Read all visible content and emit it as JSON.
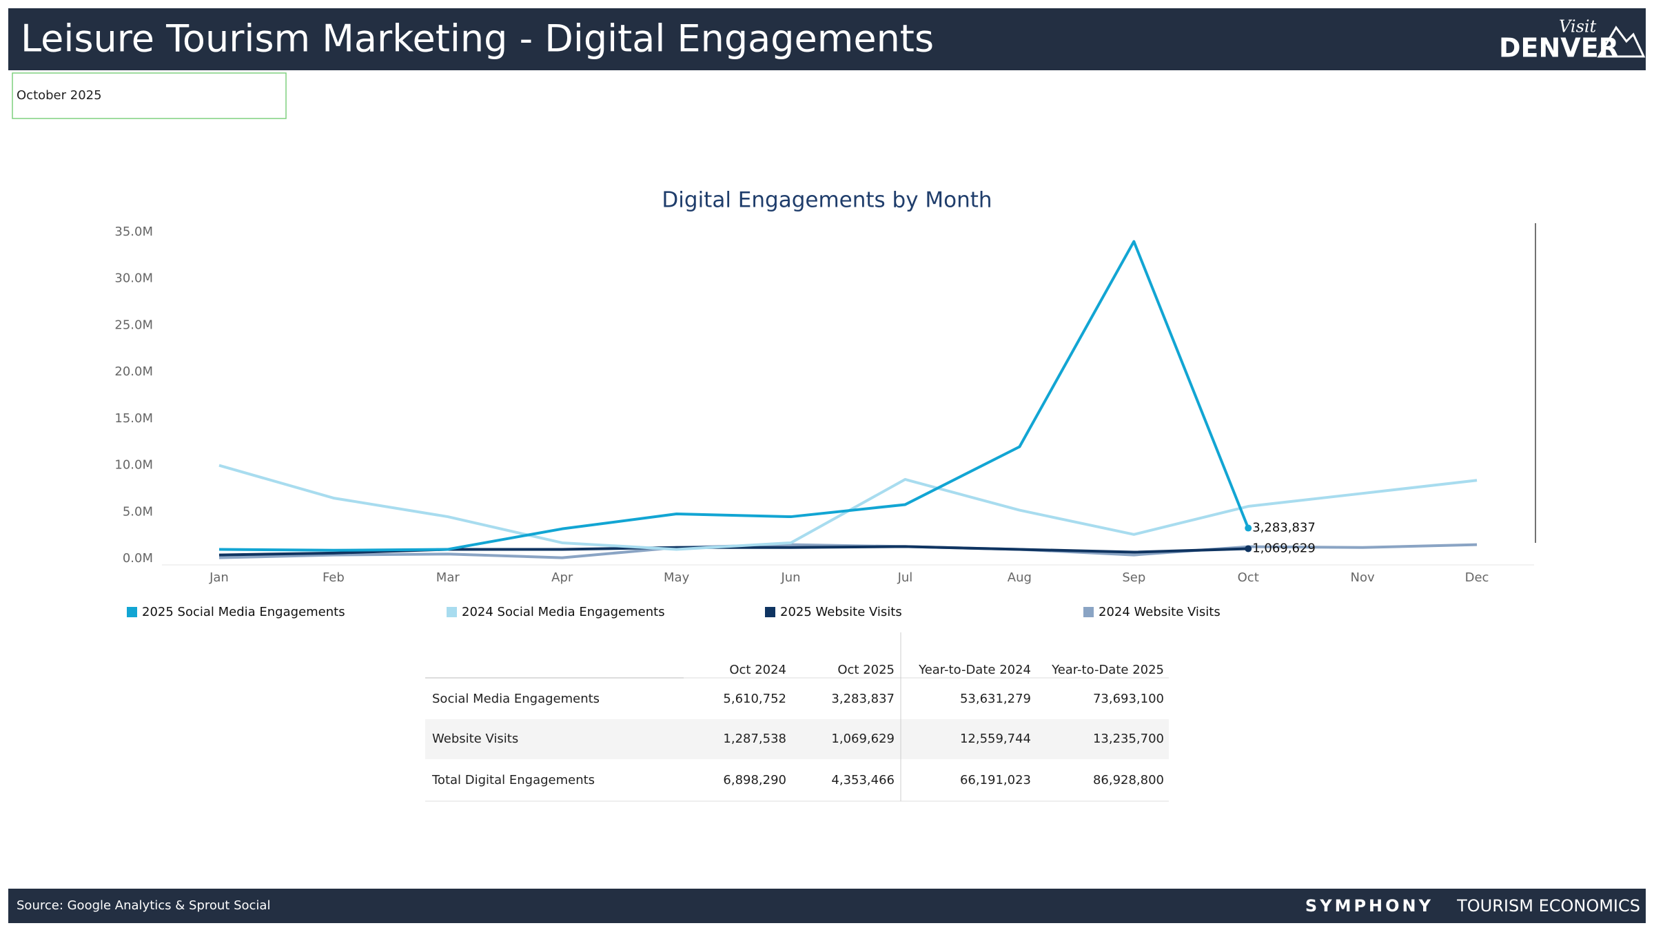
{
  "header": {
    "title": "Leisure Tourism Marketing - Digital Engagements",
    "logo": {
      "small": "Visit",
      "large": "DENVER"
    }
  },
  "filter": {
    "label": "October 2025"
  },
  "chart_data": {
    "type": "line",
    "title": "Digital Engagements by Month",
    "categories": [
      "Jan",
      "Feb",
      "Mar",
      "Apr",
      "May",
      "Jun",
      "Jul",
      "Aug",
      "Sep",
      "Oct",
      "Nov",
      "Dec"
    ],
    "series": [
      {
        "name": "2025 Social Media Engagements",
        "color": "#12a5d3",
        "width": 4,
        "values": [
          1000000,
          900000,
          1000000,
          3200000,
          4800000,
          4500000,
          5800000,
          12000000,
          34000000,
          3283837,
          null,
          null
        ],
        "value_labels": [
          null,
          null,
          null,
          null,
          null,
          null,
          null,
          null,
          null,
          "3,283,837",
          null,
          null
        ]
      },
      {
        "name": "2024 Social Media Engagements",
        "color": "#a8dcef",
        "width": 4,
        "values": [
          10000000,
          6500000,
          4500000,
          1700000,
          1000000,
          1700000,
          8500000,
          5200000,
          2600000,
          5610752,
          7000000,
          8400000
        ]
      },
      {
        "name": "2025 Website Visits",
        "color": "#0f3461",
        "width": 4,
        "values": [
          400000,
          600000,
          1000000,
          1000000,
          1200000,
          1200000,
          1300000,
          1000000,
          700000,
          1069629,
          null,
          null
        ],
        "value_labels": [
          null,
          null,
          null,
          null,
          null,
          null,
          null,
          null,
          null,
          "1,069,629",
          null,
          null
        ]
      },
      {
        "name": "2024 Website Visits",
        "color": "#8aa4c4",
        "width": 4,
        "values": [
          100000,
          400000,
          500000,
          100000,
          1200000,
          1500000,
          1300000,
          1000000,
          400000,
          1287538,
          1200000,
          1500000
        ]
      }
    ],
    "ylim": [
      0,
      35000000
    ],
    "yticks": [
      {
        "value": 0,
        "label": "0.0M"
      },
      {
        "value": 5000000,
        "label": "5.0M"
      },
      {
        "value": 10000000,
        "label": "10.0M"
      },
      {
        "value": 15000000,
        "label": "15.0M"
      },
      {
        "value": 20000000,
        "label": "20.0M"
      },
      {
        "value": 25000000,
        "label": "25.0M"
      },
      {
        "value": 30000000,
        "label": "30.0M"
      },
      {
        "value": 35000000,
        "label": "35.0M"
      }
    ],
    "grid": false,
    "legend": "bottom"
  },
  "table": {
    "columns": [
      "Oct 2024",
      "Oct 2025",
      "Year-to-Date 2024",
      "Year-to-Date 2025"
    ],
    "rows": [
      {
        "label": "Social Media Engagements",
        "cells": [
          "5,610,752",
          "3,283,837",
          "53,631,279",
          "73,693,100"
        ]
      },
      {
        "label": "Website Visits",
        "cells": [
          "1,287,538",
          "1,069,629",
          "12,559,744",
          "13,235,700"
        ]
      },
      {
        "label": "Total Digital Engagements",
        "cells": [
          "6,898,290",
          "4,353,466",
          "66,191,023",
          "86,928,800"
        ]
      }
    ]
  },
  "footer": {
    "source": "Source: Google Analytics & Sprout Social",
    "brand": "SYMPHONY",
    "brand_sub": "TOURISM ECONOMICS"
  }
}
